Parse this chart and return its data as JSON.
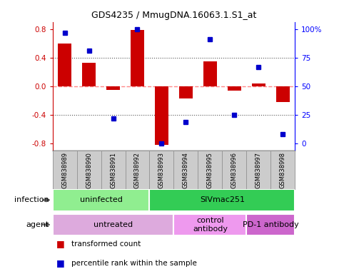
{
  "title": "GDS4235 / MmugDNA.16063.1.S1_at",
  "samples": [
    "GSM838989",
    "GSM838990",
    "GSM838991",
    "GSM838992",
    "GSM838993",
    "GSM838994",
    "GSM838995",
    "GSM838996",
    "GSM838997",
    "GSM838998"
  ],
  "red_bars": [
    0.6,
    0.33,
    -0.05,
    0.79,
    -0.82,
    -0.17,
    0.35,
    -0.06,
    0.04,
    -0.22
  ],
  "blue_dot_pct": [
    97,
    81,
    22,
    100,
    0,
    19,
    91,
    25,
    67,
    8
  ],
  "ylim": [
    -0.9,
    0.9
  ],
  "yticks_left": [
    -0.8,
    -0.4,
    0.0,
    0.4,
    0.8
  ],
  "yticks_right": [
    0,
    25,
    50,
    75,
    100
  ],
  "infection_groups": [
    {
      "label": "uninfected",
      "start": 0,
      "end": 4,
      "color": "#90EE90"
    },
    {
      "label": "SIVmac251",
      "start": 4,
      "end": 10,
      "color": "#33CC55"
    }
  ],
  "agent_groups": [
    {
      "label": "untreated",
      "start": 0,
      "end": 5,
      "color": "#DDAADD"
    },
    {
      "label": "control\nantibody",
      "start": 5,
      "end": 8,
      "color": "#EE99EE"
    },
    {
      "label": "PD-1 antibody",
      "start": 8,
      "end": 10,
      "color": "#CC66CC"
    }
  ],
  "legend_items": [
    {
      "label": "transformed count",
      "color": "#CC0000"
    },
    {
      "label": "percentile rank within the sample",
      "color": "#0000CC"
    }
  ],
  "bar_color": "#CC0000",
  "dot_color": "#0000CC",
  "zero_line_color": "#FF8888",
  "dotted_line_color": "#555555",
  "background_color": "#FFFFFF",
  "sample_box_color": "#CCCCCC",
  "sample_box_edge": "#999999",
  "left_label_infection": "infection",
  "left_label_agent": "agent",
  "n_samples": 10
}
